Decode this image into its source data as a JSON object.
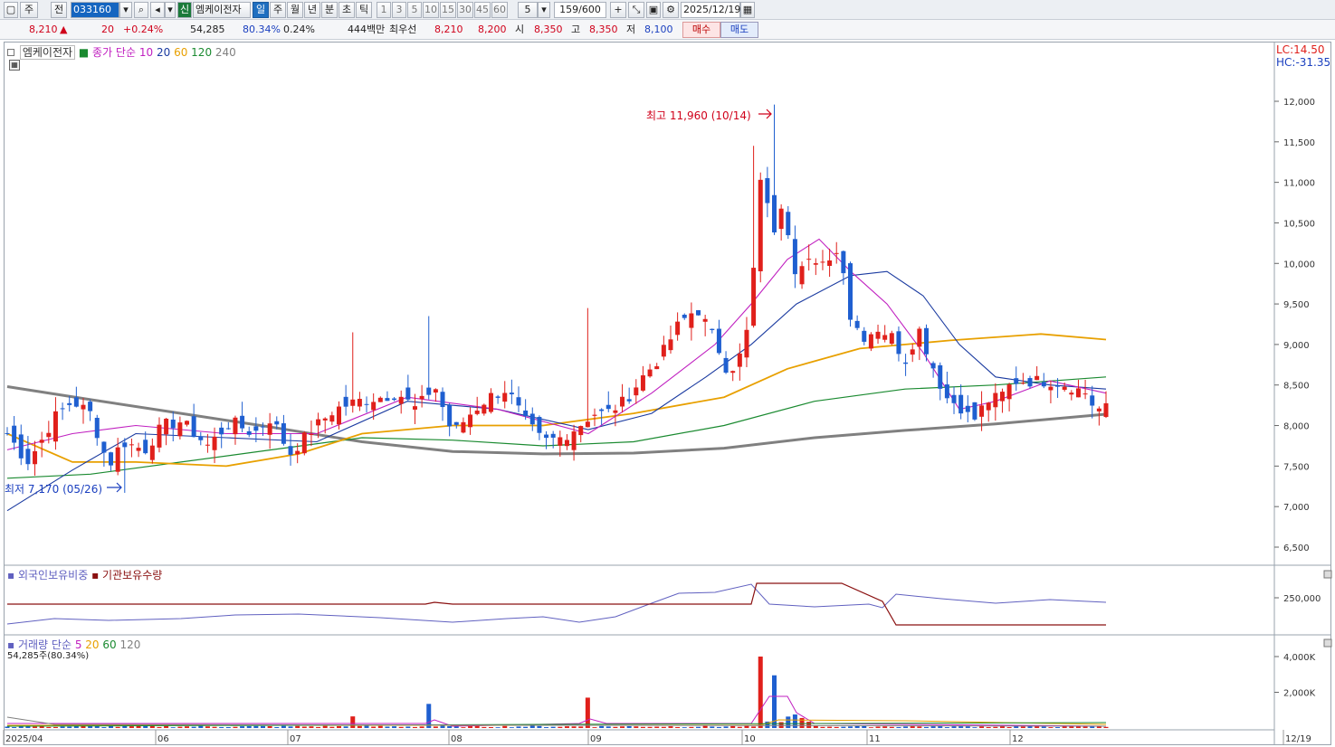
{
  "toolbar": {
    "period_label": "주",
    "prev_label": "전",
    "stock_code": "033160",
    "badge_new": "신",
    "stock_name": "엠케이전자",
    "timeframes": [
      "일",
      "주",
      "월",
      "년",
      "분",
      "초",
      "틱"
    ],
    "active_timeframe": "일",
    "intervals": [
      "1",
      "3",
      "5",
      "10",
      "15",
      "30",
      "45",
      "60"
    ],
    "interval_select": "5",
    "count_display": "159/600",
    "date_value": "2025/12/19"
  },
  "quote": {
    "price": "8,210",
    "change": "20",
    "change_pct": "+0.24%",
    "volume": "54,285",
    "volume_ratio": "80.34%",
    "turnover_pct": "0.24%",
    "amount": "444백만",
    "best_bid_label": "최우선",
    "best_ask": "8,210",
    "best_bid": "8,200",
    "open_label": "시",
    "open": "8,350",
    "high_label": "고",
    "high": "8,350",
    "low_label": "저",
    "low": "8,100",
    "buy_label": "매수",
    "sell_label": "매도"
  },
  "legend": {
    "stock": "엠케이전자",
    "ma_title": "종가 단순",
    "ma_periods": [
      "10",
      "20",
      "60",
      "120",
      "240"
    ],
    "lc": "LC:14.50",
    "hc": "HC:-31.35",
    "foreign_label": "외국인보유비중",
    "inst_label": "기관보유수량",
    "vol_title": "거래량 단순",
    "vol_periods": [
      "5",
      "20",
      "60",
      "120"
    ],
    "vol_value": "54,285주(80.34%)"
  },
  "annotations": {
    "high": "최고 11,960 (10/14)",
    "low": "최저 7,170 (05/26)"
  },
  "colors": {
    "up": "#e0201b",
    "down": "#1f5fd0",
    "ma10": "#c020c0",
    "ma20": "#1a3aa0",
    "ma60": "#e8a000",
    "ma120": "#1a8a30",
    "ma240": "#808080",
    "foreign": "#6060c0",
    "inst": "#8a1010"
  },
  "chart_data": [
    {
      "type": "candlestick",
      "title": "엠케이전자",
      "y_ticks": [
        6500,
        7000,
        7500,
        8000,
        8500,
        9000,
        9500,
        10000,
        10500,
        11000,
        11500,
        12000
      ],
      "ylim": [
        6200,
        12600
      ],
      "x_labels": [
        "2025/04",
        "06",
        "07",
        "08",
        "09",
        "10",
        "11",
        "12",
        "12/19"
      ],
      "series_names": [
        "10",
        "20",
        "60",
        "120",
        "240"
      ],
      "annotations": [
        "최고 11,960 (10/14)",
        "최저 7,170 (05/26)"
      ]
    },
    {
      "type": "line",
      "title": "외국인보유비중 / 기관보유수량",
      "y_ticks": [
        250000
      ]
    },
    {
      "type": "bar",
      "title": "거래량",
      "y_ticks": [
        2000,
        4000
      ],
      "y_tick_labels": [
        "2,000K",
        "4,000K"
      ],
      "last_value": "54,285주(80.34%)"
    }
  ]
}
